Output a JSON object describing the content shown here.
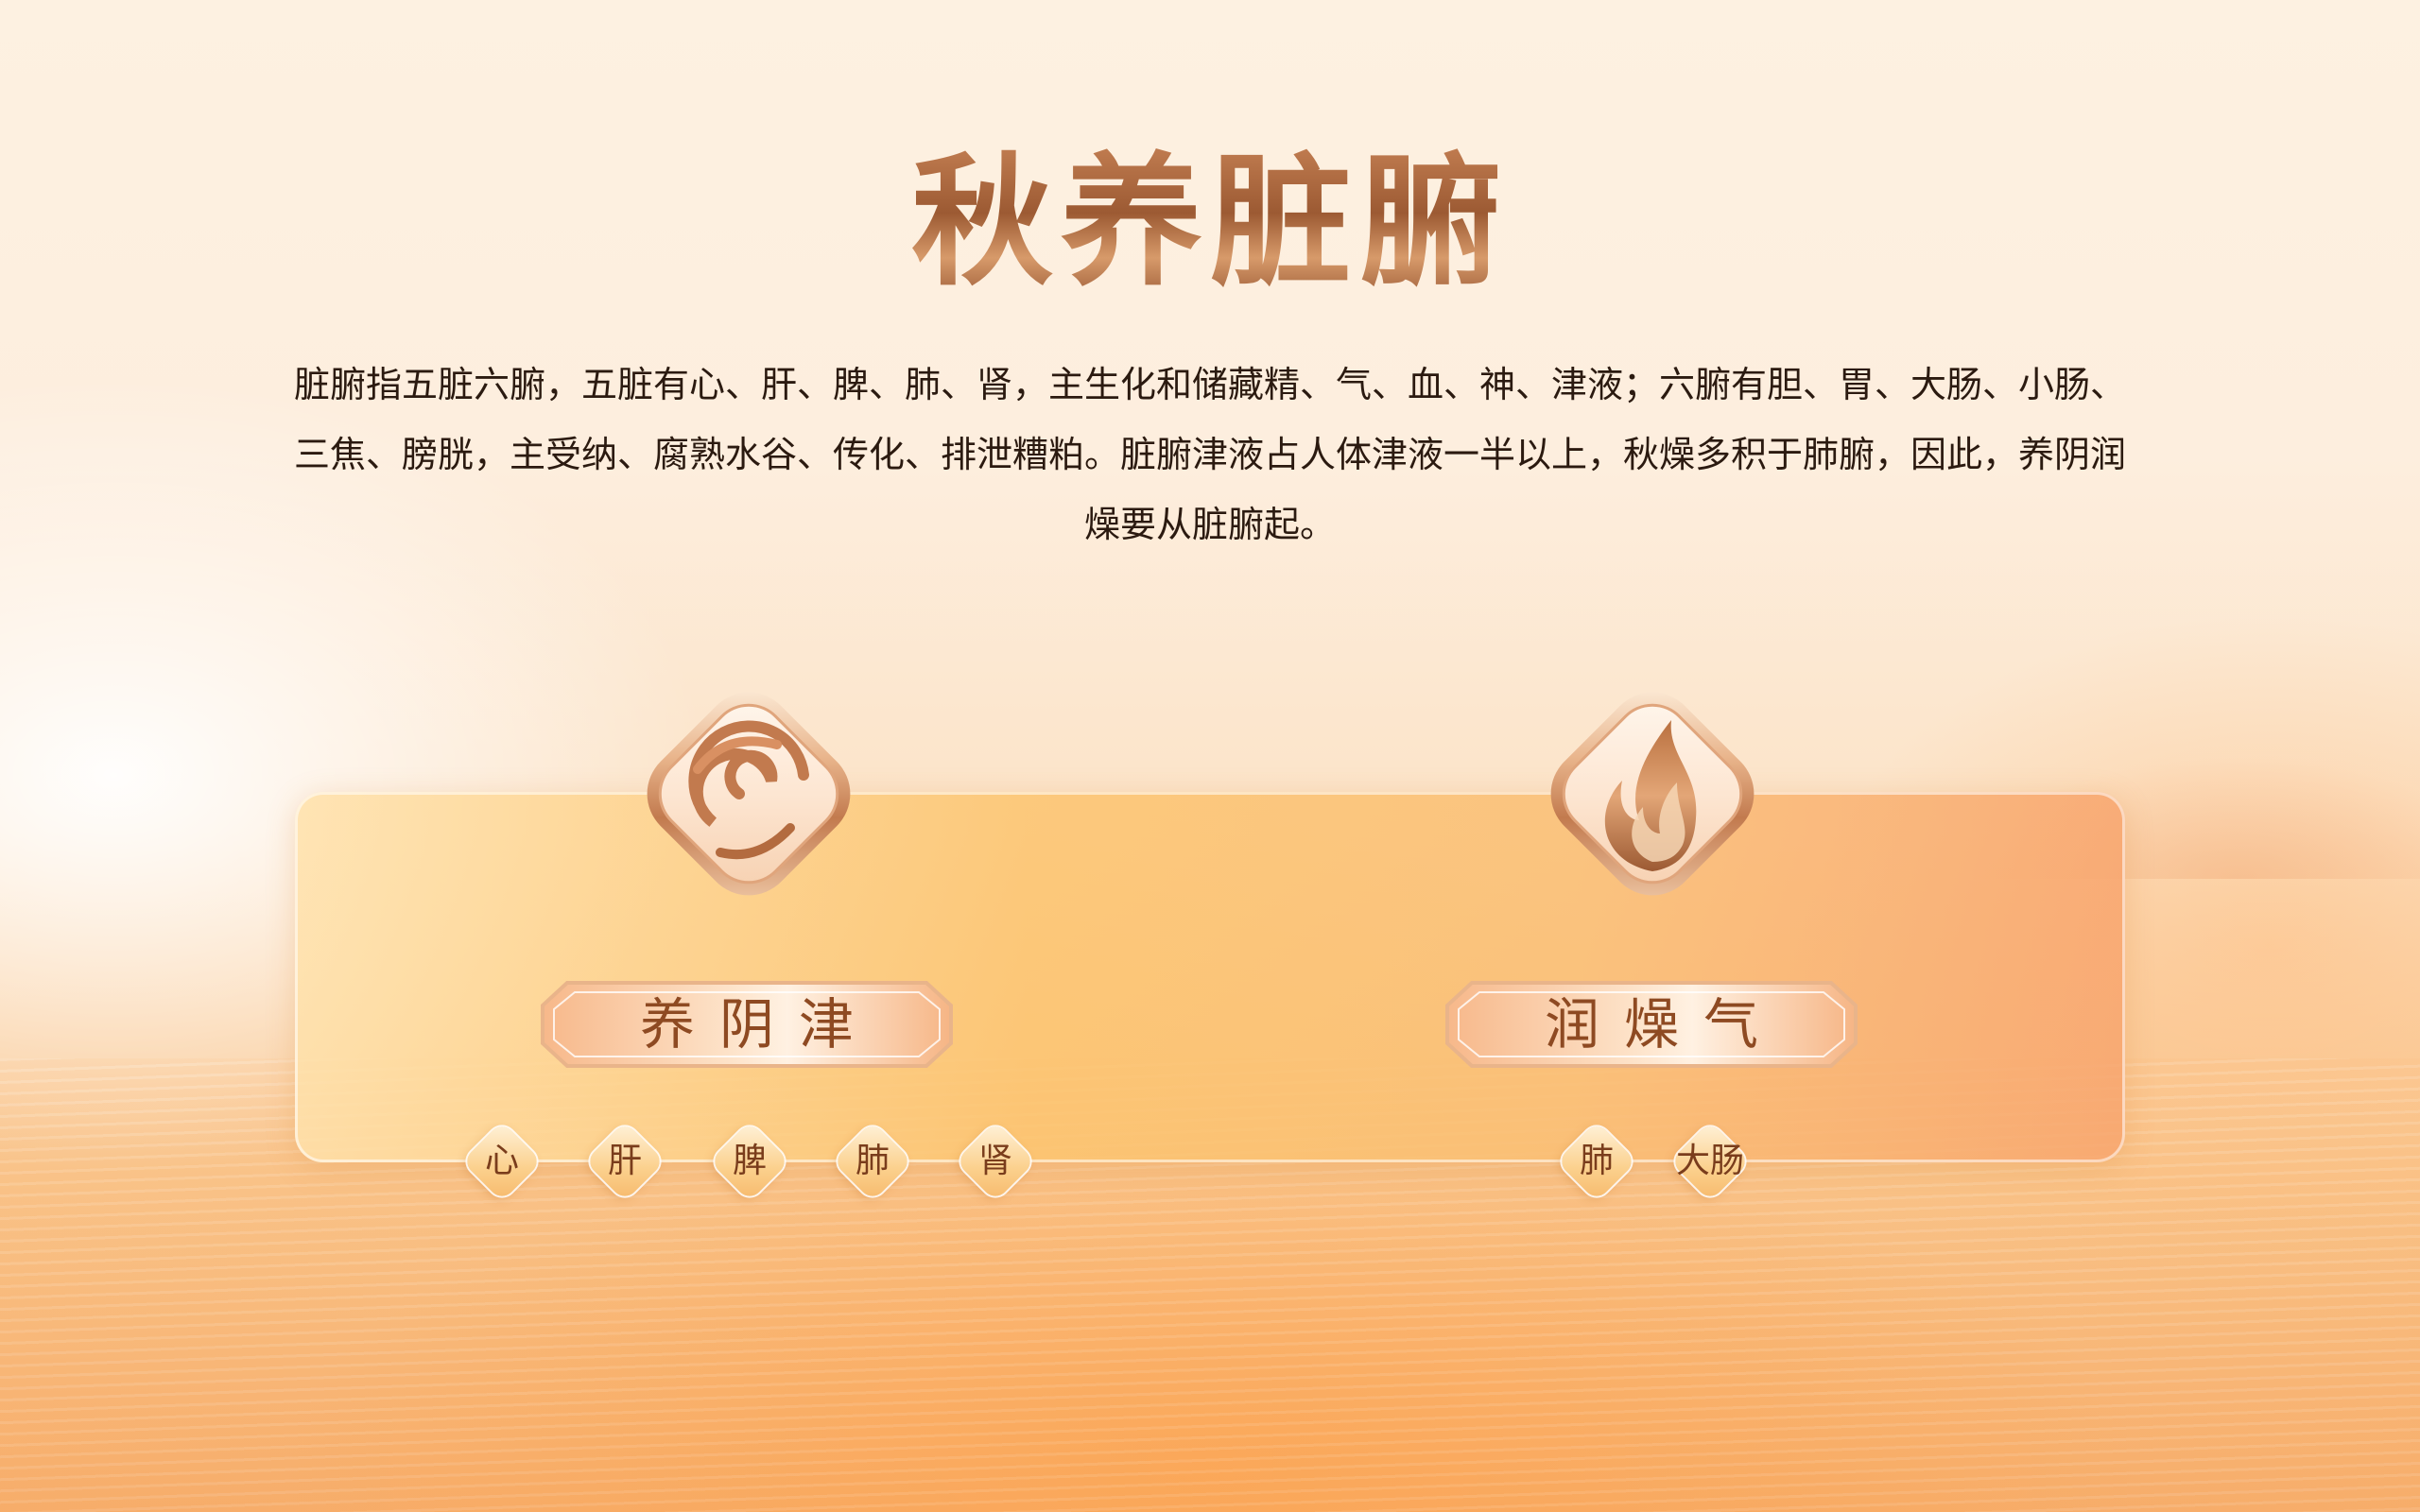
{
  "title": "秋养脏腑",
  "description": "脏腑指五脏六腑，五脏有心、肝、脾、肺、肾，主生化和储藏精、气、血、神、津液；六腑有胆、胃、大肠、小肠、三焦、膀胱，主受纳、腐熟水谷、传化、排泄糟粕。脏腑津液占人体津液一半以上，秋燥多积于肺腑，因此，养阴润燥要从脏腑起。",
  "sections": [
    {
      "label": "养阴津",
      "icon": "swirl-icon",
      "organs": [
        "心",
        "肝",
        "脾",
        "肺",
        "肾"
      ]
    },
    {
      "label": "润燥气",
      "icon": "flame-icon",
      "organs": [
        "肺",
        "大肠"
      ]
    }
  ],
  "colors": {
    "accent": "#a8673d",
    "panel": "#fcc46e",
    "text": "#2b1a10"
  }
}
